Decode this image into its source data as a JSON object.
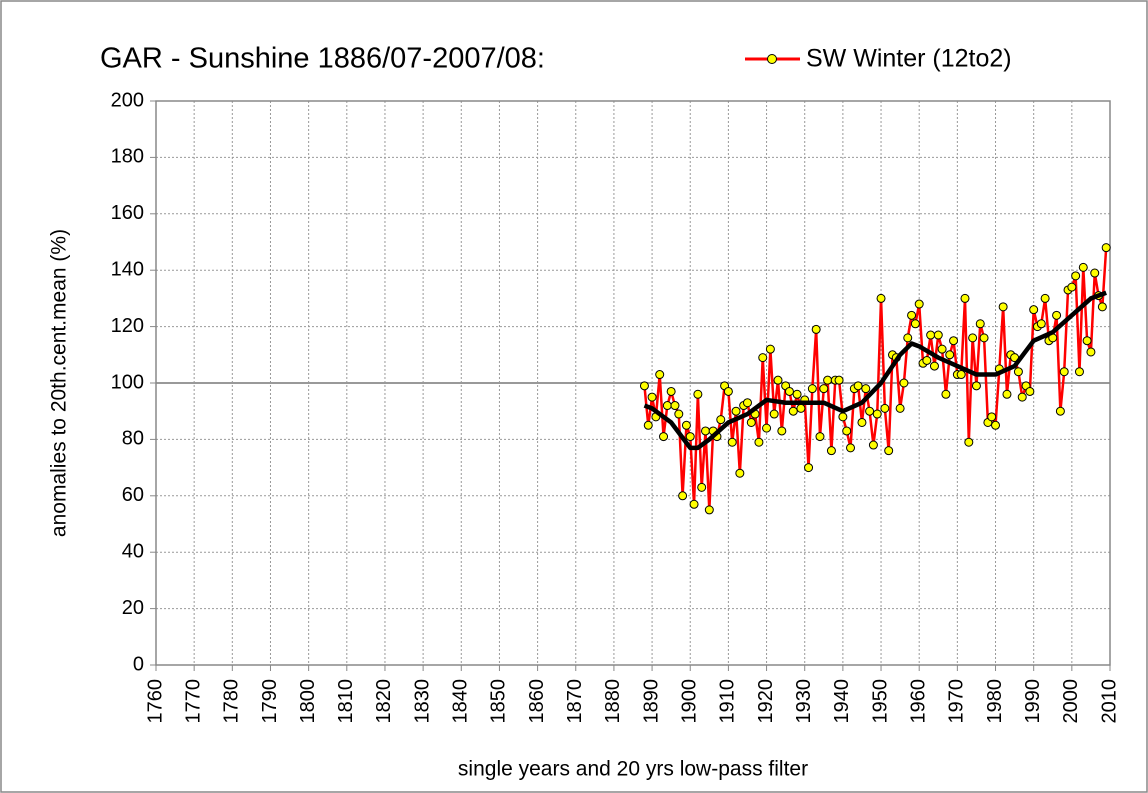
{
  "chart_data": {
    "type": "line",
    "title": "GAR - Sunshine 1886/07-2007/08:",
    "x_label": "single years and 20 yrs low-pass filter",
    "y_label": "anomalies to 20th.cent.mean (%)",
    "xlim": [
      1760,
      2010
    ],
    "xticks": [
      1760,
      1770,
      1780,
      1790,
      1800,
      1810,
      1820,
      1830,
      1840,
      1850,
      1860,
      1870,
      1880,
      1890,
      1900,
      1910,
      1920,
      1930,
      1940,
      1950,
      1960,
      1970,
      1980,
      1990,
      2000,
      2010
    ],
    "ylim": [
      0,
      200
    ],
    "yticks": [
      0,
      20,
      40,
      60,
      80,
      100,
      120,
      140,
      160,
      180,
      200
    ],
    "grid": true,
    "hline": 100,
    "legend": "top-right",
    "series": [
      {
        "name": "SW Winter (12to2)",
        "color": "#ff0000",
        "marker_color": "#ffff00",
        "x": [
          1888,
          1889,
          1890,
          1891,
          1892,
          1893,
          1894,
          1895,
          1896,
          1897,
          1898,
          1899,
          1900,
          1901,
          1902,
          1903,
          1904,
          1905,
          1906,
          1907,
          1908,
          1909,
          1910,
          1911,
          1912,
          1913,
          1914,
          1915,
          1916,
          1917,
          1918,
          1919,
          1920,
          1921,
          1922,
          1923,
          1924,
          1925,
          1926,
          1927,
          1928,
          1929,
          1930,
          1931,
          1932,
          1933,
          1934,
          1935,
          1936,
          1937,
          1938,
          1939,
          1940,
          1941,
          1942,
          1943,
          1944,
          1945,
          1946,
          1947,
          1948,
          1949,
          1950,
          1951,
          1952,
          1953,
          1954,
          1955,
          1956,
          1957,
          1958,
          1959,
          1960,
          1961,
          1962,
          1963,
          1964,
          1965,
          1966,
          1967,
          1968,
          1969,
          1970,
          1971,
          1972,
          1973,
          1974,
          1975,
          1976,
          1977,
          1978,
          1979,
          1980,
          1981,
          1982,
          1983,
          1984,
          1985,
          1986,
          1987,
          1988,
          1989,
          1990,
          1991,
          1992,
          1993,
          1994,
          1995,
          1996,
          1997,
          1998,
          1999,
          2000,
          2001,
          2002,
          2003,
          2004,
          2005,
          2006,
          2007,
          2008,
          2009
        ],
        "values": [
          99,
          85,
          95,
          88,
          103,
          81,
          92,
          97,
          92,
          89,
          60,
          85,
          81,
          57,
          96,
          63,
          83,
          55,
          83,
          81,
          87,
          99,
          97,
          79,
          90,
          68,
          92,
          93,
          86,
          89,
          79,
          109,
          84,
          112,
          89,
          101,
          83,
          99,
          97,
          90,
          96,
          91,
          94,
          70,
          98,
          119,
          81,
          98,
          101,
          76,
          101,
          101,
          88,
          83,
          77,
          98,
          99,
          86,
          98,
          90,
          78,
          89,
          130,
          91,
          76,
          110,
          109,
          91,
          100,
          116,
          124,
          121,
          128,
          107,
          108,
          117,
          106,
          117,
          112,
          96,
          110,
          115,
          103,
          103,
          130,
          79,
          116,
          99,
          121,
          116,
          86,
          88,
          85,
          105,
          127,
          96,
          110,
          109,
          104,
          95,
          99,
          97,
          126,
          120,
          121,
          130,
          115,
          116,
          124,
          90,
          104,
          133,
          134,
          138,
          104,
          141,
          115,
          111,
          139,
          131,
          127,
          148
        ]
      },
      {
        "color": "#000000",
        "x": [
          1888,
          1890,
          1895,
          1900,
          1902,
          1905,
          1910,
          1915,
          1920,
          1925,
          1930,
          1935,
          1940,
          1945,
          1950,
          1955,
          1958,
          1960,
          1965,
          1970,
          1975,
          1980,
          1985,
          1990,
          1995,
          2000,
          2005,
          2009
        ],
        "values": [
          92,
          91,
          86,
          77,
          77,
          80,
          86,
          89,
          94,
          93,
          93,
          93,
          90,
          93,
          100,
          110,
          114,
          113,
          109,
          106,
          103,
          103,
          106,
          115,
          118,
          124,
          130,
          132
        ]
      }
    ]
  }
}
